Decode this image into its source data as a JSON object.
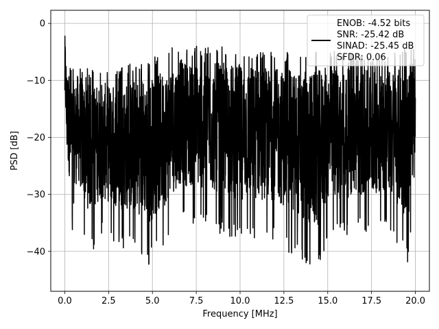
{
  "chart_data": {
    "type": "line",
    "title": "",
    "xlabel": "Frequency [MHz]",
    "ylabel": "PSD [dB]",
    "xlim": [
      -0.8,
      20.8
    ],
    "ylim": [
      -47,
      2.3
    ],
    "xticks": [
      0.0,
      2.5,
      5.0,
      7.5,
      10.0,
      12.5,
      15.0,
      17.5,
      20.0
    ],
    "xtick_labels": [
      "0.0",
      "2.5",
      "5.0",
      "7.5",
      "10.0",
      "12.5",
      "15.0",
      "17.5",
      "20.0"
    ],
    "yticks": [
      0,
      -10,
      -20,
      -30,
      -40
    ],
    "ytick_labels": [
      "0",
      "−10",
      "−20",
      "−30",
      "−40"
    ],
    "grid": true,
    "legend_position": "top-right",
    "series": [
      {
        "name": "",
        "color": "#000000",
        "description_points": {
          "x": [
            0.0,
            0.05,
            0.1,
            0.5,
            0.7,
            1.2,
            1.6,
            2.0,
            3.0,
            4.5,
            4.8,
            5.5,
            6.5,
            8.0,
            10.0,
            12.0,
            14.3,
            15.0,
            17.0,
            18.5,
            19.6,
            20.0
          ],
          "y_max": [
            -1.0,
            -2.0,
            -6.0,
            -7.5,
            -7.0,
            -7.5,
            -8.0,
            -8.0,
            -8.0,
            -6.0,
            -6.0,
            -5.5,
            -3.5,
            -4.0,
            -4.0,
            -5.0,
            -4.5,
            -4.5,
            -5.5,
            -5.5,
            -4.0,
            -4.0
          ],
          "y_min": [
            -21.0,
            -22.0,
            -29.0,
            -38.5,
            -33.0,
            -39.0,
            -40.0,
            -37.0,
            -39.0,
            -41.0,
            -42.5,
            -40.0,
            -35.0,
            -36.0,
            -38.0,
            -38.0,
            -44.5,
            -38.0,
            -37.0,
            -36.0,
            -42.5,
            -27.0
          ]
        }
      }
    ],
    "legend": {
      "entries": [
        "ENOB: -4.52 bits",
        "SNR: -25.42 dB",
        "SINAD: -25.45 dB",
        "SFDR: 0.06"
      ]
    }
  }
}
